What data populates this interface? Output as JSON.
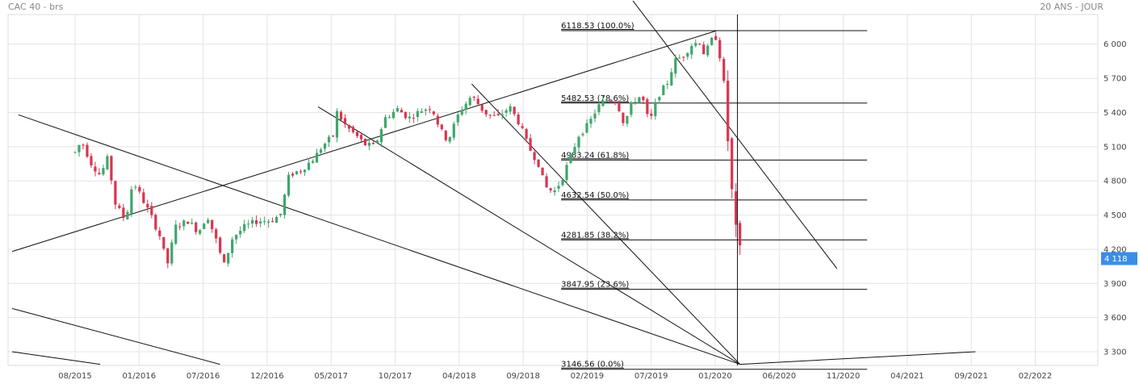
{
  "header": {
    "title": "CAC 40 - brs",
    "period": "20 ANS - JOUR"
  },
  "colors": {
    "up": "#3fa66b",
    "down": "#d8344f",
    "grid": "#e4e4e4",
    "last": "#3a8ee6",
    "line": "#111111"
  },
  "chart_data": {
    "type": "candlestick",
    "instrument": "CAC 40",
    "x_ticks": [
      "08/2015",
      "01/2016",
      "07/2016",
      "12/2016",
      "05/2017",
      "10/2017",
      "04/2018",
      "09/2018",
      "02/2019",
      "07/2019",
      "01/2020",
      "06/2020",
      "11/2020",
      "04/2021",
      "09/2021",
      "02/2022"
    ],
    "y_ticks": [
      "6 000",
      "5 700",
      "5 400",
      "5 100",
      "4 800",
      "4 500",
      "4 200",
      "3 900",
      "3 600",
      "3 300"
    ],
    "ylim": [
      3180,
      6260
    ],
    "last_price_label": "4 118",
    "close_series": [
      {
        "m": 0,
        "v": 5050
      },
      {
        "m": 0.5,
        "v": 5150
      },
      {
        "m": 1.3,
        "v": 4950
      },
      {
        "m": 2.0,
        "v": 4850
      },
      {
        "m": 2.6,
        "v": 5000
      },
      {
        "m": 3.2,
        "v": 4600
      },
      {
        "m": 4.0,
        "v": 4450
      },
      {
        "m": 4.6,
        "v": 4800
      },
      {
        "m": 5.3,
        "v": 4650
      },
      {
        "m": 6.0,
        "v": 4500
      },
      {
        "m": 6.8,
        "v": 4300
      },
      {
        "m": 7.3,
        "v": 4050
      },
      {
        "m": 8.0,
        "v": 4400
      },
      {
        "m": 9.0,
        "v": 4450
      },
      {
        "m": 9.8,
        "v": 4350
      },
      {
        "m": 10.5,
        "v": 4500
      },
      {
        "m": 11.3,
        "v": 4250
      },
      {
        "m": 11.8,
        "v": 4050
      },
      {
        "m": 12.5,
        "v": 4300
      },
      {
        "m": 13.5,
        "v": 4400
      },
      {
        "m": 14.5,
        "v": 4450
      },
      {
        "m": 15.5,
        "v": 4450
      },
      {
        "m": 16.3,
        "v": 4500
      },
      {
        "m": 17.0,
        "v": 4850
      },
      {
        "m": 18.0,
        "v": 4900
      },
      {
        "m": 19.0,
        "v": 5000
      },
      {
        "m": 19.6,
        "v": 5100
      },
      {
        "m": 20.5,
        "v": 5200
      },
      {
        "m": 20.8,
        "v": 5400
      },
      {
        "m": 21.5,
        "v": 5280
      },
      {
        "m": 22.3,
        "v": 5200
      },
      {
        "m": 23.0,
        "v": 5120
      },
      {
        "m": 23.8,
        "v": 5100
      },
      {
        "m": 24.6,
        "v": 5350
      },
      {
        "m": 25.6,
        "v": 5430
      },
      {
        "m": 26.5,
        "v": 5350
      },
      {
        "m": 27.5,
        "v": 5420
      },
      {
        "m": 28.3,
        "v": 5450
      },
      {
        "m": 29.0,
        "v": 5250
      },
      {
        "m": 29.6,
        "v": 5150
      },
      {
        "m": 30.5,
        "v": 5400
      },
      {
        "m": 31.5,
        "v": 5550
      },
      {
        "m": 32.5,
        "v": 5400
      },
      {
        "m": 33.5,
        "v": 5350
      },
      {
        "m": 34.5,
        "v": 5450
      },
      {
        "m": 35.3,
        "v": 5300
      },
      {
        "m": 36.0,
        "v": 5100
      },
      {
        "m": 36.8,
        "v": 4950
      },
      {
        "m": 37.3,
        "v": 4750
      },
      {
        "m": 38.0,
        "v": 4700
      },
      {
        "m": 38.6,
        "v": 4800
      },
      {
        "m": 39.3,
        "v": 5000
      },
      {
        "m": 40.0,
        "v": 5200
      },
      {
        "m": 40.8,
        "v": 5300
      },
      {
        "m": 41.5,
        "v": 5450
      },
      {
        "m": 42.3,
        "v": 5520
      },
      {
        "m": 43.0,
        "v": 5500
      },
      {
        "m": 43.6,
        "v": 5300
      },
      {
        "m": 44.3,
        "v": 5500
      },
      {
        "m": 45.0,
        "v": 5550
      },
      {
        "m": 45.6,
        "v": 5300
      },
      {
        "m": 46.3,
        "v": 5550
      },
      {
        "m": 47.0,
        "v": 5650
      },
      {
        "m": 47.6,
        "v": 5850
      },
      {
        "m": 48.3,
        "v": 5900
      },
      {
        "m": 49.0,
        "v": 6000
      },
      {
        "m": 49.6,
        "v": 6020
      },
      {
        "m": 50.0,
        "v": 5900
      },
      {
        "m": 50.5,
        "v": 6030
      },
      {
        "m": 51.0,
        "v": 6070
      },
      {
        "m": 51.6,
        "v": 5550
      },
      {
        "m": 52.0,
        "v": 4900
      },
      {
        "m": 52.4,
        "v": 4400
      },
      {
        "m": 52.9,
        "v": 4118
      }
    ],
    "fibonacci": [
      {
        "label": "6118.53  (100.0%)",
        "value": 6118.53
      },
      {
        "label": "5482.53  (78.6%)",
        "value": 5482.53
      },
      {
        "label": "4983.24  (61.8%)",
        "value": 4983.24
      },
      {
        "label": "4632.54  (50.0%)",
        "value": 4632.54
      },
      {
        "label": "4281.85  (38.2%)",
        "value": 4281.85
      },
      {
        "label": "3847.95  (23.6%)",
        "value": 3847.95
      },
      {
        "label": "3146.56  (0.0%)",
        "value": 3146.56
      }
    ],
    "trendlines": [
      {
        "from": [
          -5.0,
          4180
        ],
        "to": [
          51.0,
          6120
        ]
      },
      {
        "from": [
          -4.5,
          5380
        ],
        "to": [
          52.8,
          3190
        ]
      },
      {
        "from": [
          -5.0,
          3680
        ],
        "to": [
          11.5,
          3190
        ]
      },
      {
        "from": [
          -5.0,
          3300
        ],
        "to": [
          2.0,
          3190
        ]
      },
      {
        "from": [
          19.3,
          5450
        ],
        "to": [
          52.8,
          3190
        ]
      },
      {
        "from": [
          31.5,
          5650
        ],
        "to": [
          52.8,
          3190
        ]
      },
      {
        "from": [
          44.3,
          6380
        ],
        "to": [
          60.5,
          4030
        ]
      },
      {
        "from": [
          52.8,
          3190
        ],
        "to": [
          71.5,
          3300
        ]
      }
    ],
    "marker_month": 52.6
  }
}
